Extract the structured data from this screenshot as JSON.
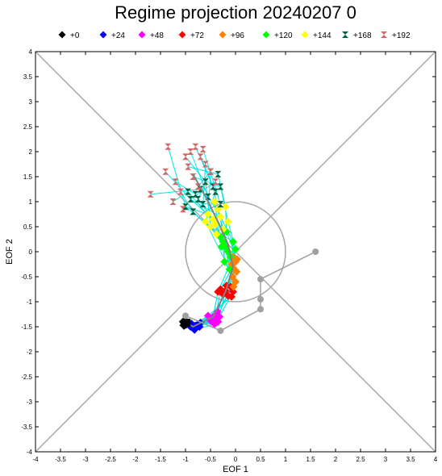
{
  "chart_data": {
    "type": "scatter",
    "title": "Regime projection 20240207 0",
    "xlabel": "EOF 1",
    "ylabel": "EOF 2",
    "xlim": [
      -4,
      4
    ],
    "ylim": [
      -4,
      4
    ],
    "xticks": [
      -4,
      -3.5,
      -3,
      -2.5,
      -2,
      -1.5,
      -1,
      -0.5,
      0,
      0.5,
      1,
      1.5,
      2,
      2.5,
      3,
      3.5,
      4
    ],
    "yticks": [
      -4,
      -3.5,
      -3,
      -2.5,
      -2,
      -1.5,
      -1,
      -0.5,
      0,
      0.5,
      1,
      1.5,
      2,
      2.5,
      3,
      3.5,
      4
    ],
    "legend_position": "top",
    "reference_circle": {
      "center": [
        0,
        0
      ],
      "radius": 1
    },
    "series": [
      {
        "name": "+0",
        "color": "#000000",
        "points": [
          [
            -1.02,
            -1.42
          ],
          [
            -1.0,
            -1.45
          ],
          [
            -1.04,
            -1.4
          ],
          [
            -0.98,
            -1.44
          ],
          [
            -1.03,
            -1.47
          ]
        ]
      },
      {
        "name": "+24",
        "color": "#0000ff",
        "points": [
          [
            -0.9,
            -1.5
          ],
          [
            -0.85,
            -1.53
          ],
          [
            -0.8,
            -1.48
          ],
          [
            -0.75,
            -1.45
          ],
          [
            -0.7,
            -1.42
          ],
          [
            -0.82,
            -1.56
          ],
          [
            -0.88,
            -1.44
          ],
          [
            -0.72,
            -1.5
          ]
        ]
      },
      {
        "name": "+48",
        "color": "#ff00ff",
        "points": [
          [
            -0.45,
            -1.3
          ],
          [
            -0.4,
            -1.35
          ],
          [
            -0.38,
            -1.25
          ],
          [
            -0.35,
            -1.4
          ],
          [
            -0.5,
            -1.38
          ],
          [
            -0.42,
            -1.45
          ],
          [
            -0.32,
            -1.3
          ],
          [
            -0.55,
            -1.28
          ],
          [
            -0.36,
            -1.2
          ]
        ]
      },
      {
        "name": "+72",
        "color": "#ff0000",
        "points": [
          [
            -0.35,
            -0.8
          ],
          [
            -0.3,
            -0.75
          ],
          [
            -0.25,
            -0.85
          ],
          [
            -0.2,
            -0.78
          ],
          [
            -0.15,
            -0.88
          ],
          [
            -0.1,
            -0.7
          ],
          [
            -0.05,
            -0.8
          ],
          [
            -0.08,
            -0.9
          ],
          [
            -0.18,
            -0.68
          ]
        ]
      },
      {
        "name": "+96",
        "color": "#ff8000",
        "points": [
          [
            -0.05,
            -0.1
          ],
          [
            0.0,
            -0.2
          ],
          [
            -0.02,
            -0.35
          ],
          [
            -0.06,
            -0.5
          ],
          [
            0.02,
            -0.4
          ],
          [
            -0.08,
            -0.25
          ],
          [
            0.0,
            -0.6
          ],
          [
            -0.04,
            -0.7
          ],
          [
            0.03,
            -0.15
          ]
        ]
      },
      {
        "name": "+120",
        "color": "#00ff00",
        "points": [
          [
            -0.3,
            0.3
          ],
          [
            -0.25,
            0.2
          ],
          [
            -0.2,
            0.1
          ],
          [
            -0.15,
            0.0
          ],
          [
            -0.1,
            -0.1
          ],
          [
            -0.05,
            0.2
          ],
          [
            -0.22,
            -0.2
          ],
          [
            -0.12,
            -0.35
          ],
          [
            -0.18,
            0.4
          ],
          [
            0.0,
            0.05
          ],
          [
            -0.28,
            0.1
          ]
        ]
      },
      {
        "name": "+144",
        "color": "#ffff00",
        "points": [
          [
            -0.55,
            0.75
          ],
          [
            -0.45,
            0.65
          ],
          [
            -0.4,
            0.55
          ],
          [
            -0.35,
            0.85
          ],
          [
            -0.5,
            0.5
          ],
          [
            -0.3,
            0.7
          ],
          [
            -0.25,
            0.45
          ],
          [
            -0.6,
            0.6
          ],
          [
            -0.2,
            0.9
          ],
          [
            -0.15,
            0.6
          ],
          [
            -0.42,
            1.0
          ],
          [
            -0.38,
            0.35
          ]
        ]
      },
      {
        "name": "+168",
        "color": "#006040",
        "points": [
          [
            -1.0,
            0.9
          ],
          [
            -0.9,
            1.05
          ],
          [
            -0.8,
            1.15
          ],
          [
            -0.7,
            1.25
          ],
          [
            -0.6,
            1.4
          ],
          [
            -0.55,
            1.1
          ],
          [
            -0.45,
            1.3
          ],
          [
            -0.4,
            1.2
          ],
          [
            -0.35,
            1.55
          ],
          [
            -0.3,
            1.3
          ],
          [
            -0.65,
            0.95
          ],
          [
            -0.85,
            0.8
          ],
          [
            -0.5,
            1.6
          ],
          [
            -0.75,
            1.05
          ],
          [
            -0.95,
            1.2
          ],
          [
            -0.3,
            0.95
          ]
        ]
      },
      {
        "name": "+192",
        "color": "#d26868",
        "points": [
          [
            -1.35,
            2.1
          ],
          [
            -1.4,
            1.6
          ],
          [
            -1.2,
            1.4
          ],
          [
            -1.7,
            1.15
          ],
          [
            -1.0,
            1.9
          ],
          [
            -0.9,
            2.0
          ],
          [
            -0.8,
            2.1
          ],
          [
            -0.7,
            1.9
          ],
          [
            -0.95,
            1.7
          ],
          [
            -0.85,
            1.5
          ],
          [
            -0.6,
            1.75
          ],
          [
            -1.1,
            1.2
          ],
          [
            -0.75,
            1.3
          ],
          [
            -0.5,
            1.6
          ],
          [
            -1.25,
            1.0
          ],
          [
            -0.65,
            2.05
          ],
          [
            -1.05,
            0.85
          ],
          [
            -0.4,
            1.4
          ]
        ]
      }
    ],
    "ensemble_mean": {
      "color": "#808080",
      "points": [
        [
          -0.98,
          -1.42
        ],
        [
          -0.85,
          -1.5
        ],
        [
          -0.45,
          -1.3
        ],
        [
          -0.2,
          -0.8
        ],
        [
          -0.05,
          -0.3
        ],
        [
          -0.15,
          0.15
        ],
        [
          -0.35,
          0.6
        ],
        [
          -0.6,
          1.1
        ],
        [
          -0.85,
          1.55
        ]
      ]
    },
    "control": {
      "color": "#a0a0a0",
      "points": [
        [
          -1.0,
          -1.28
        ],
        [
          -0.3,
          -1.58
        ],
        [
          0.5,
          -1.15
        ],
        [
          0.5,
          -0.95
        ],
        [
          0.5,
          -0.55
        ],
        [
          1.6,
          0.0
        ]
      ]
    },
    "diagonals": [
      [
        [
          -4,
          -4
        ],
        [
          4,
          4
        ]
      ],
      [
        [
          -4,
          4
        ],
        [
          4,
          -4
        ]
      ]
    ]
  }
}
